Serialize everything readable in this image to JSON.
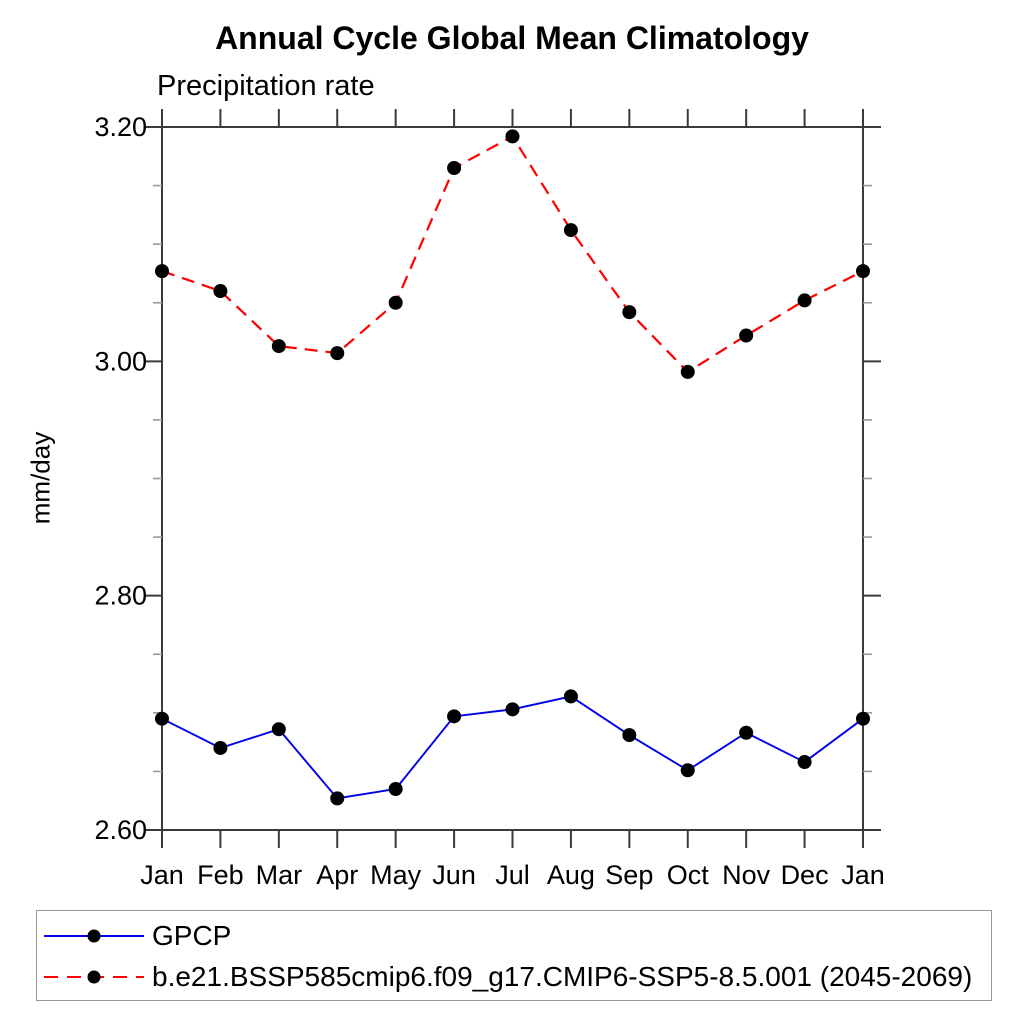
{
  "title": "Annual Cycle Global Mean Climatology",
  "subtitle": "Precipitation rate",
  "chart_data": {
    "type": "line",
    "x_categories": [
      "Jan",
      "Feb",
      "Mar",
      "Apr",
      "May",
      "Jun",
      "Jul",
      "Aug",
      "Sep",
      "Oct",
      "Nov",
      "Dec",
      "Jan"
    ],
    "xlabel": "",
    "ylabel": "mm/day",
    "ylim": [
      2.6,
      3.2
    ],
    "ytick_major_values": [
      2.6,
      2.8,
      3.0,
      3.2
    ],
    "ytick_major_labels": [
      "2.60",
      "2.80",
      "3.00",
      "3.20"
    ],
    "ytick_minor_step": 0.05,
    "grid": false,
    "legend_position": "bottom-outside",
    "marker": "filled-circle",
    "marker_color": "#000000",
    "axis_color": "#3a3a3a",
    "minor_tick_color": "#999999",
    "series": [
      {
        "name": "GPCP",
        "color": "#0000ee",
        "line_style": "solid",
        "values": [
          2.695,
          2.67,
          2.686,
          2.627,
          2.635,
          2.697,
          2.703,
          2.714,
          2.681,
          2.651,
          2.683,
          2.658,
          2.695
        ]
      },
      {
        "name": "b.e21.BSSP585cmip6.f09_g17.CMIP6-SSP5-8.5.001 (2045-2069)",
        "color": "#ff0000",
        "line_style": "dashed",
        "values": [
          3.077,
          3.06,
          3.013,
          3.007,
          3.05,
          3.165,
          3.192,
          3.112,
          3.042,
          2.991,
          3.022,
          3.052,
          3.077
        ]
      }
    ]
  }
}
